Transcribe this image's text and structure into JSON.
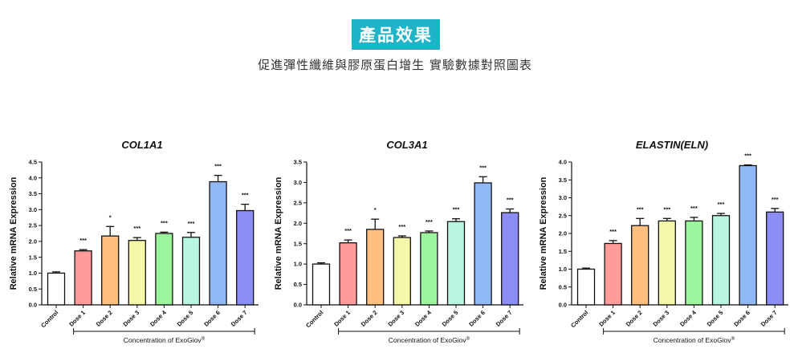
{
  "header": {
    "badge": "產品效果",
    "subtitle": "促進彈性纖維與膠原蛋白增生 實驗數據對照圖表"
  },
  "colors": {
    "badge_bg": "#1fb3c8",
    "bars": [
      "#ffffff",
      "#ff9b9b",
      "#ffbf7f",
      "#f5f7a8",
      "#9cf59c",
      "#b8f6e2",
      "#8fb8f5",
      "#8c8cf5"
    ]
  },
  "chart_data": [
    {
      "type": "bar",
      "title": "COL1A1",
      "ylabel": "Relative mRNA Expression",
      "xlabel_main": "Concentration of ExoGiov",
      "xlabel_sup": "®",
      "categories": [
        "Control",
        "Dose 1",
        "Dose 2",
        "Dose 3",
        "Dose 4",
        "Dose 5",
        "Dose 6",
        "Dose 7"
      ],
      "values": [
        1.0,
        1.7,
        2.17,
        2.03,
        2.25,
        2.13,
        3.88,
        2.97
      ],
      "errors": [
        0.04,
        0.04,
        0.3,
        0.09,
        0.04,
        0.15,
        0.2,
        0.2
      ],
      "significance": [
        "",
        "***",
        "*",
        "***",
        "***",
        "***",
        "***",
        "***"
      ],
      "ylim": [
        0,
        4.5
      ],
      "yticks": [
        "0.0",
        "0.5",
        "1.0",
        "1.5",
        "2.0",
        "2.5",
        "3.0",
        "3.5",
        "4.0",
        "4.5"
      ]
    },
    {
      "type": "bar",
      "title": "COL3A1",
      "ylabel": "Relative mRNA Expression",
      "xlabel_main": "Concentration of ExoGiov",
      "xlabel_sup": "®",
      "categories": [
        "Control",
        "Dose 1",
        "Dose 2",
        "Dose 3",
        "Dose 4",
        "Dose 5",
        "Dose 6",
        "Dose 7"
      ],
      "values": [
        1.0,
        1.52,
        1.85,
        1.65,
        1.77,
        2.04,
        2.99,
        2.26
      ],
      "errors": [
        0.03,
        0.07,
        0.25,
        0.04,
        0.04,
        0.07,
        0.15,
        0.09
      ],
      "significance": [
        "",
        "***",
        "*",
        "***",
        "***",
        "***",
        "***",
        "***"
      ],
      "ylim": [
        0,
        3.5
      ],
      "yticks": [
        "0.0",
        "0.5",
        "1.0",
        "1.5",
        "2.0",
        "2.5",
        "3.0",
        "3.5"
      ]
    },
    {
      "type": "bar",
      "title": "ELASTIN(ELN)",
      "ylabel": "Relative mRNA Expression",
      "xlabel_main": "Concentration of ExoGiov",
      "xlabel_sup": "®",
      "categories": [
        "Control",
        "Dose 1",
        "Dose 2",
        "Dose 3",
        "Dose 4",
        "Dose 5",
        "Dose 6",
        "Dose 7"
      ],
      "values": [
        1.0,
        1.72,
        2.22,
        2.35,
        2.35,
        2.5,
        3.9,
        2.6
      ],
      "errors": [
        0.03,
        0.08,
        0.2,
        0.07,
        0.1,
        0.06,
        0.02,
        0.1
      ],
      "significance": [
        "",
        "***",
        "***",
        "***",
        "***",
        "***",
        "***",
        "***"
      ],
      "ylim": [
        0,
        4.0
      ],
      "yticks": [
        "0.0",
        "0.5",
        "1.0",
        "1.5",
        "2.0",
        "2.5",
        "3.0",
        "3.5",
        "4.0"
      ]
    }
  ]
}
